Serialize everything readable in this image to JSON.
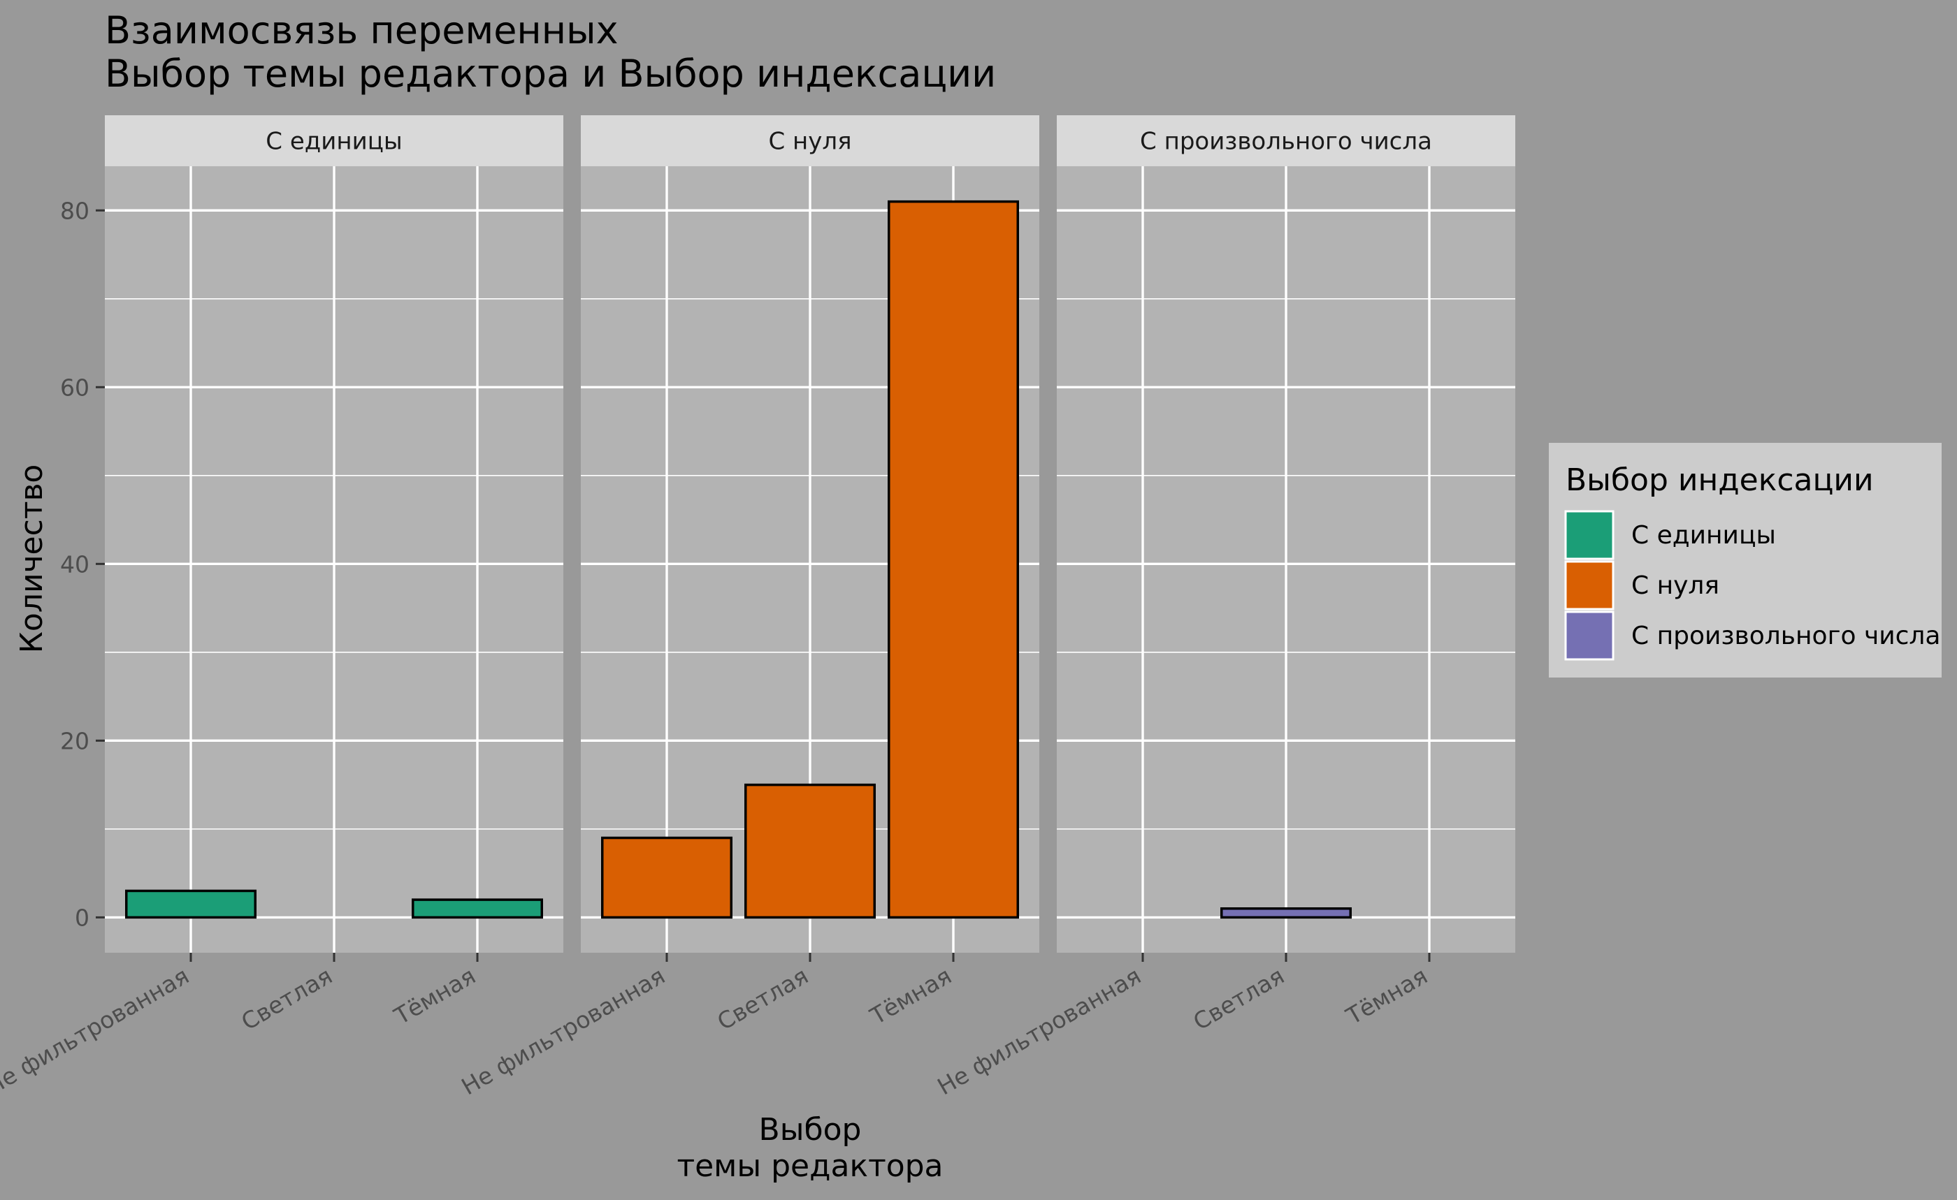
{
  "chart_data": {
    "type": "bar",
    "title": [
      "Взаимосвязь переменных",
      "Выбор темы редактора и Выбор индексации"
    ],
    "xlabel": [
      "Выбор",
      "темы редактора"
    ],
    "ylabel": "Количество",
    "ylim": [
      -4,
      85
    ],
    "yticks": [
      0,
      20,
      40,
      60,
      80
    ],
    "grid": true,
    "categories": [
      "Не фильтрованная",
      "Светлая",
      "Тёмная"
    ],
    "facets": [
      {
        "label": "С единицы",
        "color": "#1b9e77",
        "values": [
          3,
          0,
          2
        ]
      },
      {
        "label": "С нуля",
        "color": "#d95f02",
        "values": [
          9,
          15,
          81
        ]
      },
      {
        "label": "С произвольного числа",
        "color": "#7570b3",
        "values": [
          0,
          1,
          0
        ]
      }
    ],
    "legend": {
      "title": "Выбор индексации",
      "position": "right",
      "items": [
        "С единицы",
        "С нуля",
        "С произвольного числа"
      ]
    }
  }
}
